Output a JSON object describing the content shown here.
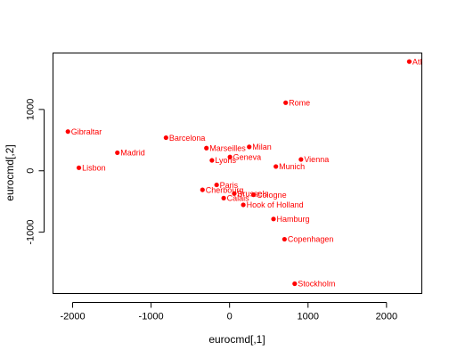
{
  "chart_data": {
    "type": "scatter",
    "xlabel": "eurocmd[,1]",
    "ylabel": "eurocmd[,2]",
    "xlim": [
      -2250,
      2450
    ],
    "ylim": [
      -2000,
      1920
    ],
    "xticks": [
      -2000,
      -1000,
      0,
      1000,
      2000
    ],
    "yticks": [
      -1000,
      0,
      1000
    ],
    "grid": false,
    "legend": "none",
    "color": "#ff0000",
    "points": [
      {
        "name": "Athens",
        "x": 2290,
        "y": 1780
      },
      {
        "name": "Rome",
        "x": 715,
        "y": 1110
      },
      {
        "name": "Gibraltar",
        "x": -2060,
        "y": 640
      },
      {
        "name": "Barcelona",
        "x": -810,
        "y": 540
      },
      {
        "name": "Marseilles",
        "x": -295,
        "y": 370
      },
      {
        "name": "Milan",
        "x": 250,
        "y": 390
      },
      {
        "name": "Madrid",
        "x": -1430,
        "y": 295
      },
      {
        "name": "Geneva",
        "x": 5,
        "y": 225
      },
      {
        "name": "Vienna",
        "x": 910,
        "y": 185
      },
      {
        "name": "Lyons",
        "x": -225,
        "y": 170
      },
      {
        "name": "Munich",
        "x": 590,
        "y": 70
      },
      {
        "name": "Lisbon",
        "x": -1920,
        "y": 50
      },
      {
        "name": "Paris",
        "x": -165,
        "y": -230
      },
      {
        "name": "Cherbourg",
        "x": -345,
        "y": -310
      },
      {
        "name": "Brussels",
        "x": 60,
        "y": -370
      },
      {
        "name": "Cologne",
        "x": 305,
        "y": -390
      },
      {
        "name": "Calais",
        "x": -75,
        "y": -445
      },
      {
        "name": "Hook of Holland",
        "x": 175,
        "y": -555
      },
      {
        "name": "Hamburg",
        "x": 560,
        "y": -785
      },
      {
        "name": "Copenhagen",
        "x": 700,
        "y": -1115
      },
      {
        "name": "Stockholm",
        "x": 830,
        "y": -1840
      }
    ]
  }
}
